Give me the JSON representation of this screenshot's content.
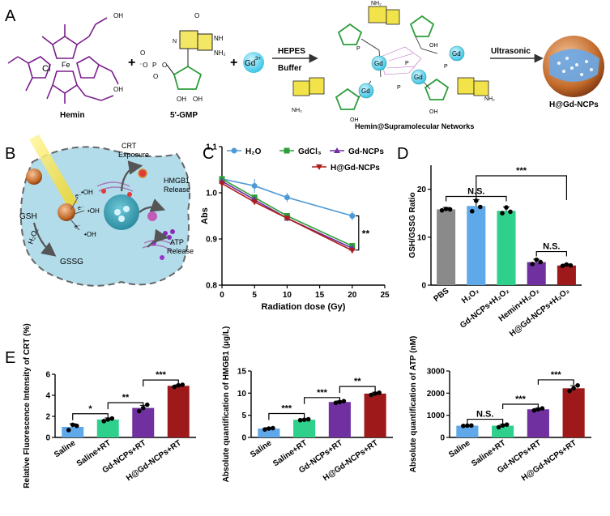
{
  "panel_labels": [
    "A",
    "B",
    "C",
    "D",
    "E"
  ],
  "colors": {
    "purple": "#7a1e8c",
    "green": "#2c9e3a",
    "yellow": "#f2e34a",
    "gd_cyan": "#4ed1ee",
    "teal": "#2ea2a0",
    "blue": "#4f9ad6",
    "red": "#b01c1c",
    "grey": "#8a8a8a",
    "light_blue": "#5fa8ea",
    "mint": "#2fcf8c",
    "violet": "#7030a0",
    "dark_red": "#9e1a1a",
    "cell": "#b3dcea"
  },
  "scheme": {
    "hemin": {
      "fe": "Fe",
      "cl": "Cl",
      "oh": "OH",
      "label": "Hemin"
    },
    "gmp": {
      "o": "O",
      "phosphate_o": "O",
      "p": "P",
      "minus_o": "⁻O",
      "nh2": "NH₂",
      "nh": "NH",
      "n": "N",
      "oh": "OH",
      "label": "5'-GMP"
    },
    "plus": "+",
    "gd": "Gd",
    "gd_charge": "3+",
    "arrow1": {
      "top": "HEPES",
      "bottom": "Buffer"
    },
    "network_label": "Hemin@Supramolecular Networks",
    "network_gd": [
      "Gd",
      "Gd",
      "Gd",
      "Gd"
    ],
    "arrow2": "Ultrasonic",
    "particle_label": "H@Gd-NCPs"
  },
  "cell_scheme": {
    "gsh": "GSH",
    "gssg": "GSSG",
    "h2o2": "H₂O₂",
    "radicals": [
      "•OH",
      "•OH",
      "•OH"
    ],
    "electrons": [
      "e⁻",
      "e⁻",
      "e⁻"
    ],
    "crt": [
      "CRT",
      "Exposure"
    ],
    "hmgb1": [
      "HMGB1",
      "Release"
    ],
    "atp": [
      "ATP",
      "Release"
    ]
  },
  "chart_data": [
    {
      "panel": "C",
      "type": "line",
      "title": "",
      "xlabel": "Radiation dose (Gy)",
      "ylabel": "Abs",
      "xlim": [
        0,
        25
      ],
      "ylim": [
        0.8,
        1.1
      ],
      "xticks": [
        "0",
        "5",
        "10",
        "15",
        "20",
        "25"
      ],
      "yticks": [
        "0.8",
        "0.9",
        "1.0",
        "1.1"
      ],
      "x": [
        0,
        5,
        10,
        20
      ],
      "series": [
        {
          "name": "H₂O",
          "values": [
            1.03,
            1.015,
            0.99,
            0.95
          ],
          "errors": [
            0.005,
            0.015,
            0.01,
            0.01
          ],
          "color": "#4f9ad6"
        },
        {
          "name": "GdCl₃",
          "values": [
            1.03,
            0.99,
            0.95,
            0.885
          ],
          "errors": [
            0.004,
            0.005,
            0.004,
            0.005
          ],
          "color": "#2c9e3a"
        },
        {
          "name": "Gd-NCPs",
          "values": [
            1.025,
            0.985,
            0.945,
            0.88
          ],
          "errors": [
            0.004,
            0.005,
            0.004,
            0.005
          ],
          "color": "#7030a0"
        },
        {
          "name": "H@Gd-NCPs",
          "values": [
            1.02,
            0.98,
            0.945,
            0.875
          ],
          "errors": [
            0.004,
            0.005,
            0.004,
            0.005
          ],
          "color": "#b01c1c"
        }
      ],
      "annotation": "**"
    },
    {
      "panel": "D",
      "type": "bar",
      "xlabel": "",
      "ylabel": "GSH/GSSG Ratio",
      "ylim": [
        0,
        25
      ],
      "yticks": [
        "0",
        "10",
        "20"
      ],
      "categories": [
        "PBS",
        "H₂O₂",
        "Gd-NCPs+H₂O₂",
        "Hemin+H₂O₂",
        "H@Gd-NCPs+H₂O₂"
      ],
      "values": [
        15.8,
        16.5,
        15.5,
        4.8,
        4.1
      ],
      "errors": [
        0.4,
        1.3,
        0.8,
        0.6,
        0.3
      ],
      "points": [
        [
          15.6,
          15.9,
          15.8
        ],
        [
          15.4,
          17.6,
          16.3
        ],
        [
          15.0,
          16.2,
          15.3
        ],
        [
          4.4,
          5.3,
          4.8
        ],
        [
          4.0,
          4.3,
          4.1
        ]
      ],
      "colors": [
        "#8a8a8a",
        "#5fa8ea",
        "#2fcf8c",
        "#7030a0",
        "#9e1a1a"
      ],
      "annotations": [
        "N.S.",
        "***",
        "N.S."
      ]
    },
    {
      "panel": "E1",
      "type": "bar",
      "ylabel": "Relative Fluorescence Intensity of CRT (%)",
      "ylim": [
        0,
        6
      ],
      "yticks": [
        "0",
        "2",
        "4",
        "6"
      ],
      "categories": [
        "Saline",
        "Saline+RT",
        "Gd-NCPs+RT",
        "H@Gd-NCPs+RT"
      ],
      "values": [
        1.0,
        1.7,
        2.8,
        4.9
      ],
      "errors": [
        0.3,
        0.15,
        0.25,
        0.1
      ],
      "points": [
        [
          0.7,
          1.2,
          1.1
        ],
        [
          1.55,
          1.7,
          1.8
        ],
        [
          2.5,
          2.8,
          3.1
        ],
        [
          4.8,
          4.95,
          5.0
        ]
      ],
      "colors": [
        "#5fa8ea",
        "#2fcf8c",
        "#7030a0",
        "#9e1a1a"
      ],
      "annotations": [
        "*",
        "**",
        "***"
      ]
    },
    {
      "panel": "E2",
      "type": "bar",
      "ylabel": "Absolute quantification of HMGB1 (μg/L)",
      "ylim": [
        0,
        15
      ],
      "yticks": [
        "0",
        "5",
        "10",
        "15"
      ],
      "categories": [
        "Saline",
        "Saline+RT",
        "Gd-NCPs+RT",
        "H@Gd-NCPs+RT"
      ],
      "values": [
        2.0,
        4.0,
        8.0,
        9.9
      ],
      "errors": [
        0.2,
        0.15,
        0.25,
        0.3
      ],
      "points": [
        [
          1.8,
          2.0,
          2.1
        ],
        [
          3.9,
          4.0,
          4.1
        ],
        [
          7.8,
          8.0,
          8.2
        ],
        [
          9.6,
          9.9,
          10.1
        ]
      ],
      "colors": [
        "#5fa8ea",
        "#2fcf8c",
        "#7030a0",
        "#9e1a1a"
      ],
      "annotations": [
        "***",
        "***",
        "**"
      ]
    },
    {
      "panel": "E3",
      "type": "bar",
      "ylabel": "Absolute quantification of ATP (nM)",
      "ylim": [
        0,
        3000
      ],
      "yticks": [
        "0",
        "1000",
        "2000",
        "3000"
      ],
      "categories": [
        "Saline",
        "Saline+RT",
        "Gd-NCPs+RT",
        "H@Gd-NCPs+RT"
      ],
      "values": [
        530,
        530,
        1270,
        2220
      ],
      "errors": [
        20,
        60,
        50,
        120
      ],
      "points": [
        [
          520,
          535,
          540
        ],
        [
          460,
          540,
          580
        ],
        [
          1220,
          1270,
          1310
        ],
        [
          2100,
          2220,
          2350
        ]
      ],
      "colors": [
        "#5fa8ea",
        "#2fcf8c",
        "#7030a0",
        "#9e1a1a"
      ],
      "annotations": [
        "N.S.",
        "***",
        "***"
      ]
    }
  ]
}
